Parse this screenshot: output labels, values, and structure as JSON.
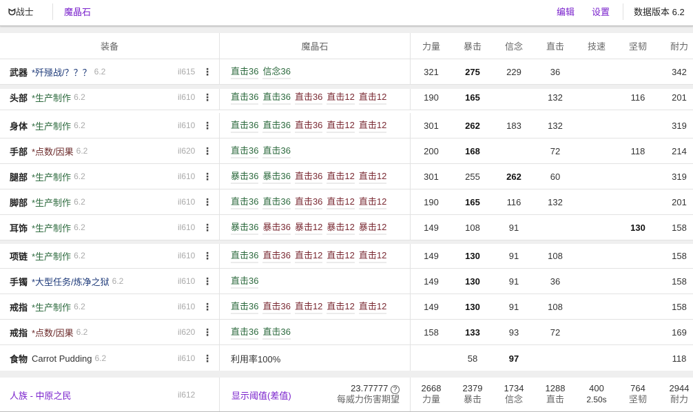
{
  "topbar": {
    "job_icon": "warrior-job-icon",
    "job": "战士",
    "tab": "魔晶石",
    "edit": "编辑",
    "settings": "设置",
    "data_version": "数据版本 6.2"
  },
  "colors": {
    "accent": "#7a22cc",
    "materia_good": "#2d6a3e",
    "materia_bad": "#7a2a33",
    "source_crafted": "#2d6a3e",
    "source_tome": "#6b2a2a",
    "source_raid": "#1f3b7a"
  },
  "headers": {
    "gear": "装备",
    "materia": "魔晶石",
    "stats": [
      "力量",
      "暴击",
      "信念",
      "直击",
      "技速",
      "坚韧",
      "耐力"
    ]
  },
  "rows": [
    {
      "slot": "武器",
      "source": "*歼殛战/？？？",
      "source_type": "raid",
      "version": "6.2",
      "ilvl": "il615",
      "materia": [
        [
          "直击36",
          "g"
        ],
        [
          "信念36",
          "g"
        ]
      ],
      "stats": [
        "321",
        "275",
        "229",
        "36",
        "",
        "",
        "342"
      ],
      "bold": 1
    },
    {
      "slot": "头部",
      "source": "*生产制作",
      "source_type": "crafted",
      "version": "6.2",
      "ilvl": "il610",
      "materia": [
        [
          "直击36",
          "g"
        ],
        [
          "直击36",
          "g"
        ],
        [
          "直击36",
          "r"
        ],
        [
          "直击12",
          "r"
        ],
        [
          "直击12",
          "r"
        ]
      ],
      "stats": [
        "190",
        "165",
        "",
        "132",
        "",
        "116",
        "201"
      ],
      "bold": 1
    },
    {
      "slot": "身体",
      "source": "*生产制作",
      "source_type": "crafted",
      "version": "6.2",
      "ilvl": "il610",
      "materia": [
        [
          "直击36",
          "g"
        ],
        [
          "直击36",
          "g"
        ],
        [
          "直击36",
          "r"
        ],
        [
          "直击12",
          "r"
        ],
        [
          "直击12",
          "r"
        ]
      ],
      "stats": [
        "301",
        "262",
        "183",
        "132",
        "",
        "",
        "319"
      ],
      "bold": 1
    },
    {
      "slot": "手部",
      "source": "*点数/因果",
      "source_type": "tome",
      "version": "6.2",
      "ilvl": "il620",
      "materia": [
        [
          "直击36",
          "g"
        ],
        [
          "直击36",
          "g"
        ]
      ],
      "stats": [
        "200",
        "168",
        "",
        "72",
        "",
        "118",
        "214"
      ],
      "bold": 1
    },
    {
      "slot": "腿部",
      "source": "*生产制作",
      "source_type": "crafted",
      "version": "6.2",
      "ilvl": "il610",
      "materia": [
        [
          "暴击36",
          "g"
        ],
        [
          "暴击36",
          "g"
        ],
        [
          "直击36",
          "r"
        ],
        [
          "直击12",
          "r"
        ],
        [
          "直击12",
          "r"
        ]
      ],
      "stats": [
        "301",
        "255",
        "262",
        "60",
        "",
        "",
        "319"
      ],
      "bold": 2
    },
    {
      "slot": "脚部",
      "source": "*生产制作",
      "source_type": "crafted",
      "version": "6.2",
      "ilvl": "il610",
      "materia": [
        [
          "直击36",
          "g"
        ],
        [
          "直击36",
          "g"
        ],
        [
          "直击36",
          "r"
        ],
        [
          "直击12",
          "r"
        ],
        [
          "直击12",
          "r"
        ]
      ],
      "stats": [
        "190",
        "165",
        "116",
        "132",
        "",
        "",
        "201"
      ],
      "bold": 1
    },
    {
      "slot": "耳饰",
      "source": "*生产制作",
      "source_type": "crafted",
      "version": "6.2",
      "ilvl": "il610",
      "materia": [
        [
          "暴击36",
          "g"
        ],
        [
          "暴击36",
          "r"
        ],
        [
          "暴击12",
          "r"
        ],
        [
          "暴击12",
          "r"
        ],
        [
          "暴击12",
          "r"
        ]
      ],
      "stats": [
        "149",
        "108",
        "91",
        "",
        "",
        "130",
        "158"
      ],
      "bold": 5
    },
    {
      "slot": "项链",
      "source": "*生产制作",
      "source_type": "crafted",
      "version": "6.2",
      "ilvl": "il610",
      "materia": [
        [
          "直击36",
          "g"
        ],
        [
          "直击36",
          "r"
        ],
        [
          "直击12",
          "r"
        ],
        [
          "直击12",
          "r"
        ],
        [
          "直击12",
          "r"
        ]
      ],
      "stats": [
        "149",
        "130",
        "91",
        "108",
        "",
        "",
        "158"
      ],
      "bold": 1
    },
    {
      "slot": "手镯",
      "source": "*大型任务/炼净之狱",
      "source_type": "raid",
      "version": "6.2",
      "ilvl": "il610",
      "materia": [
        [
          "直击36",
          "g"
        ]
      ],
      "stats": [
        "149",
        "130",
        "91",
        "36",
        "",
        "",
        "158"
      ],
      "bold": 1
    },
    {
      "slot": "戒指",
      "source": "*生产制作",
      "source_type": "crafted",
      "version": "6.2",
      "ilvl": "il610",
      "materia": [
        [
          "直击36",
          "g"
        ],
        [
          "直击36",
          "r"
        ],
        [
          "直击12",
          "r"
        ],
        [
          "直击12",
          "r"
        ],
        [
          "直击12",
          "r"
        ]
      ],
      "stats": [
        "149",
        "130",
        "91",
        "108",
        "",
        "",
        "158"
      ],
      "bold": 1
    },
    {
      "slot": "戒指",
      "source": "*点数/因果",
      "source_type": "tome",
      "version": "6.2",
      "ilvl": "il620",
      "materia": [
        [
          "直击36",
          "g"
        ],
        [
          "直击36",
          "g"
        ]
      ],
      "stats": [
        "158",
        "133",
        "93",
        "72",
        "",
        "",
        "169"
      ],
      "bold": 1
    },
    {
      "slot": "食物",
      "source": "Carrot Pudding",
      "source_type": "food",
      "version": "6.2",
      "ilvl": "il610",
      "food_note": "利用率100%",
      "materia": [],
      "stats": [
        "",
        "58",
        "97",
        "",
        "",
        "",
        "118"
      ],
      "bold": 2
    }
  ],
  "footer": {
    "race": "人族 - 中原之民",
    "ilvl": "il612",
    "threshold": "显示阈值(差值)",
    "damage": "23.77777",
    "damage_label": "每威力伤害期望",
    "help_icon": "question-circle-icon",
    "totals": [
      [
        "2668",
        "力量"
      ],
      [
        "2379",
        "暴击"
      ],
      [
        "1734",
        "信念"
      ],
      [
        "1288",
        "直击"
      ],
      [
        "400",
        "2.50s"
      ],
      [
        "764",
        "坚韧"
      ],
      [
        "2944",
        "耐力"
      ]
    ]
  }
}
